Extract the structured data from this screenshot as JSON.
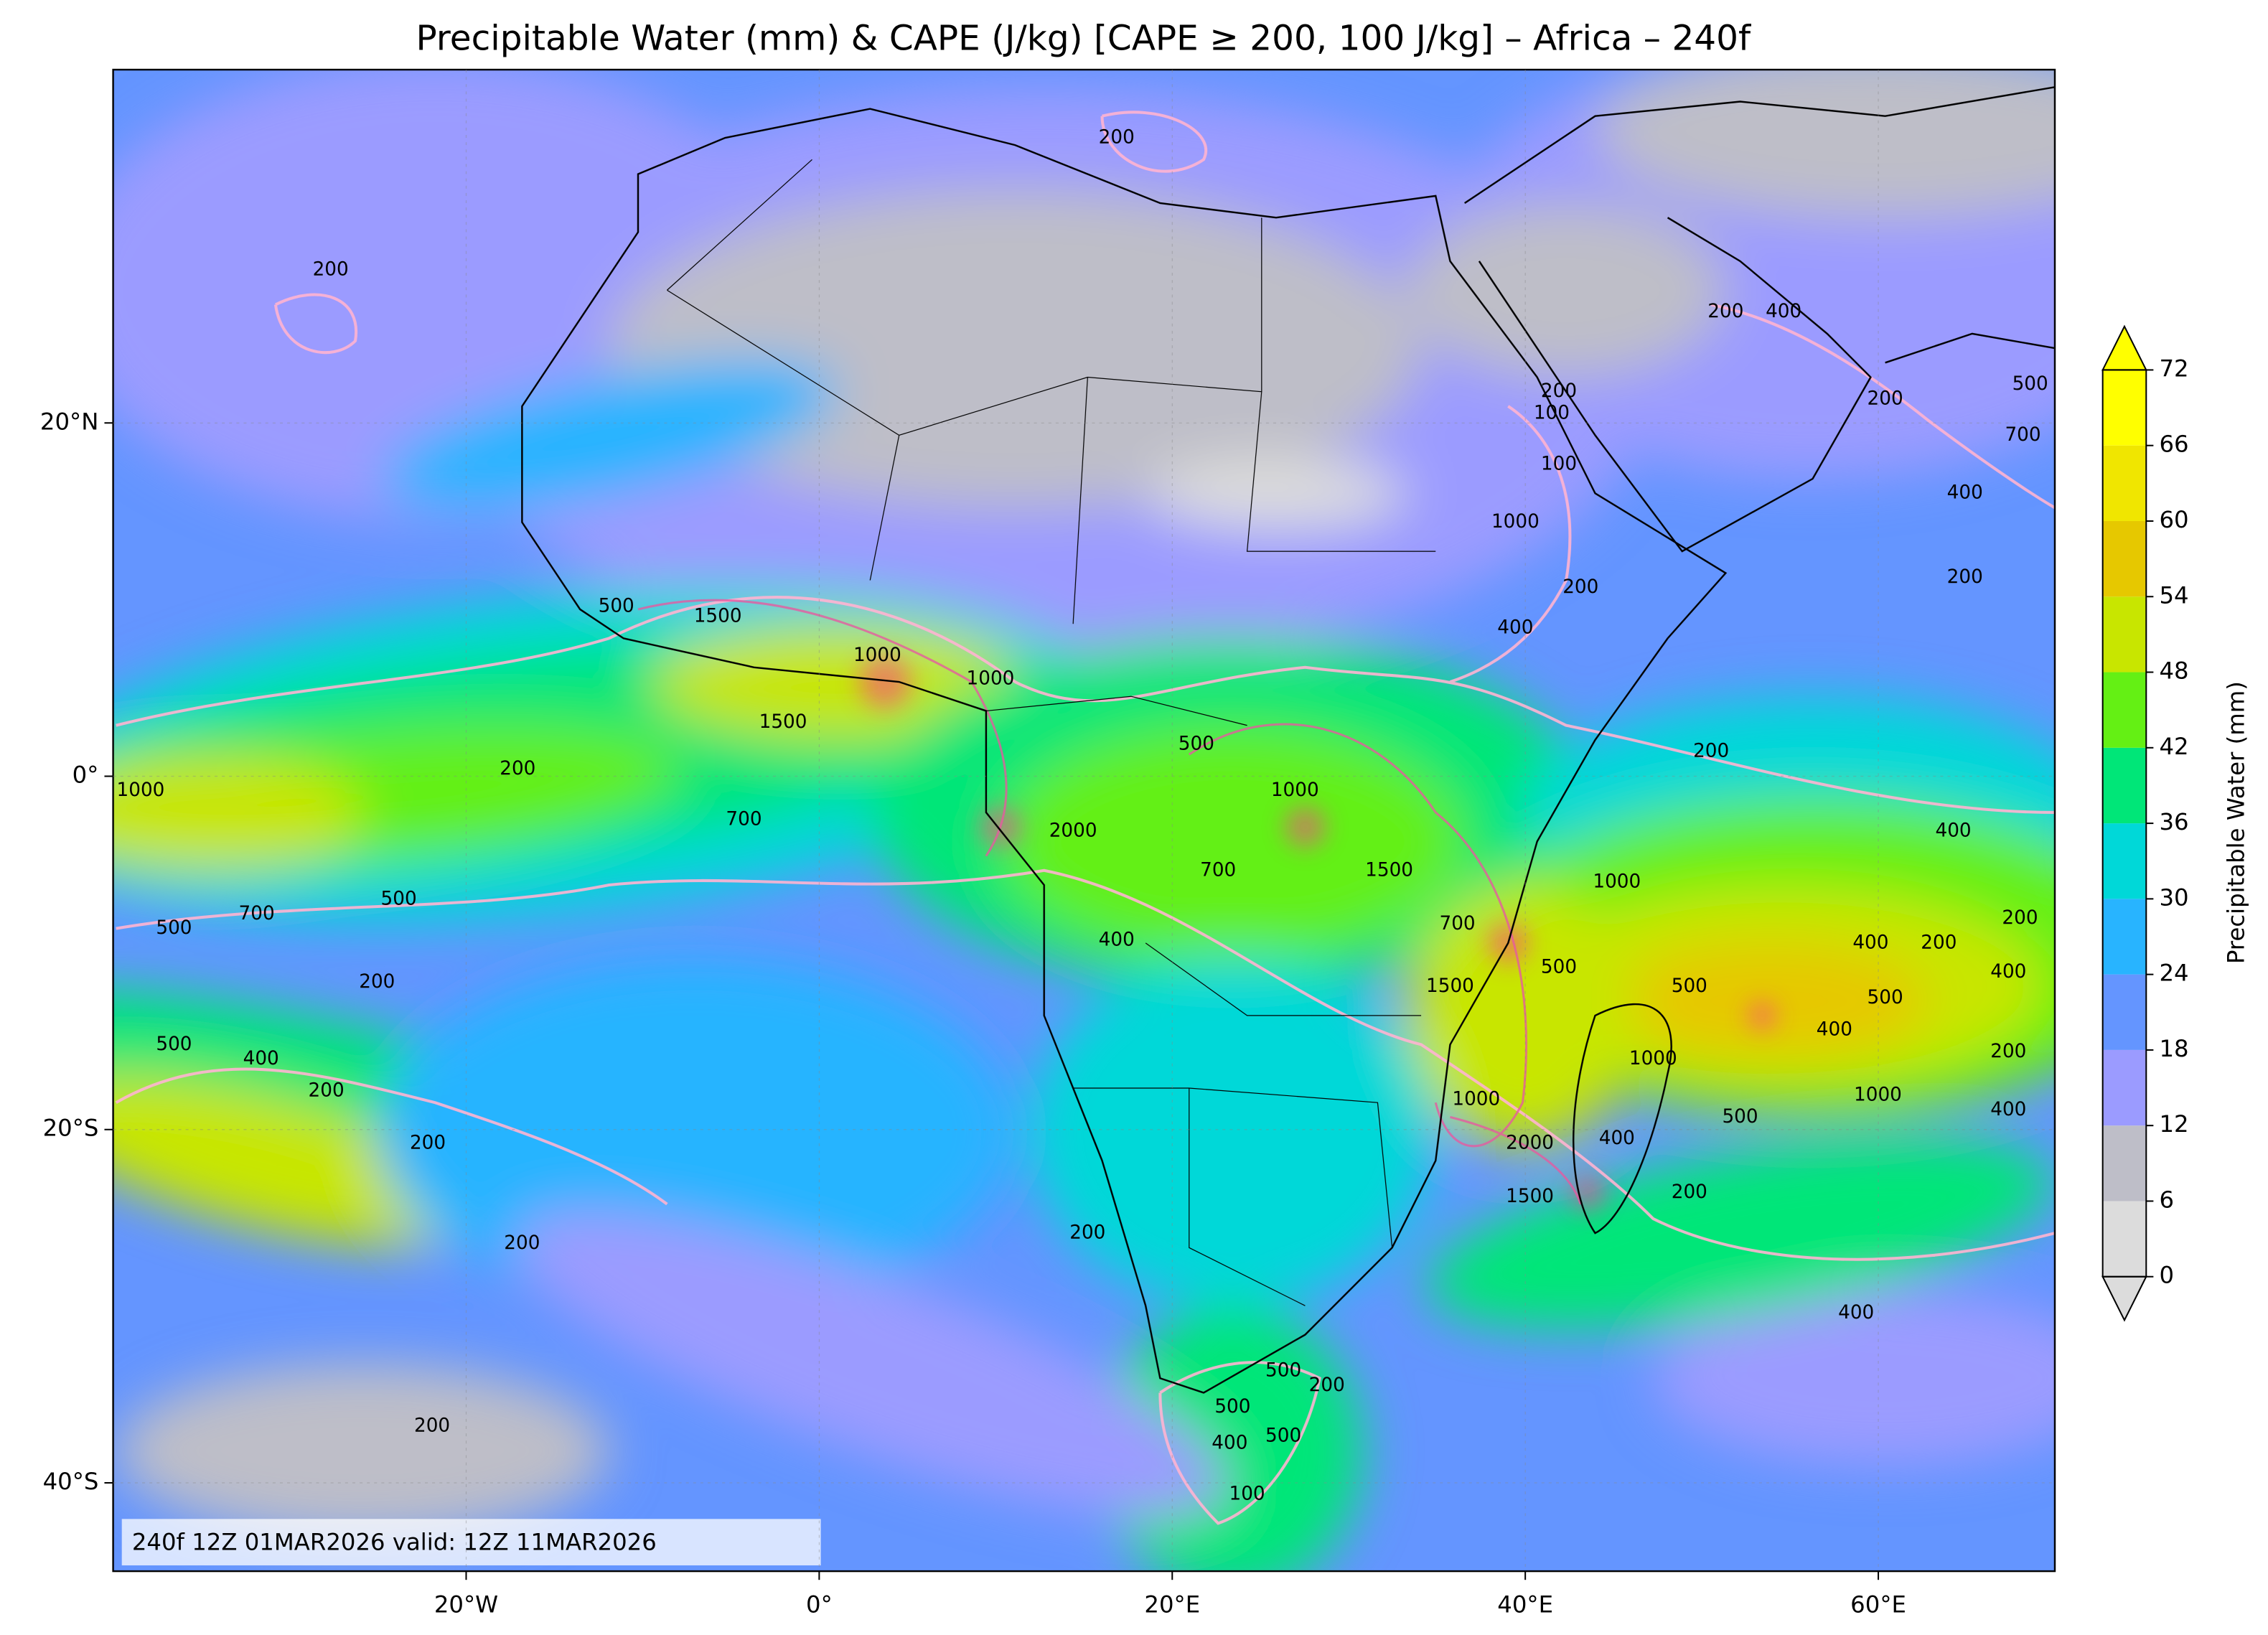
{
  "chart_data": {
    "type": "map",
    "title": "Precipitable Water (mm) & CAPE (J/kg) [CAPE ≥ 200, 100 J/kg] – Africa – 240f",
    "annotation": "240f 12Z 01MAR2026 valid: 12Z 11MAR2026",
    "xlim": [
      -40,
      70
    ],
    "ylim": [
      -45,
      40
    ],
    "xticks": [
      {
        "value": -20,
        "label": "20°W"
      },
      {
        "value": 0,
        "label": "0°"
      },
      {
        "value": 20,
        "label": "20°E"
      },
      {
        "value": 40,
        "label": "40°E"
      },
      {
        "value": 60,
        "label": "60°E"
      }
    ],
    "yticks": [
      {
        "value": 20,
        "label": "20°N"
      },
      {
        "value": 0,
        "label": "0°"
      },
      {
        "value": -20,
        "label": "20°S"
      },
      {
        "value": -40,
        "label": "40°S"
      }
    ],
    "grid": true,
    "colorbar": {
      "label": "Precipitable Water (mm)",
      "bounds": [
        0,
        6,
        12,
        18,
        24,
        30,
        36,
        42,
        48,
        54,
        60,
        66,
        72
      ],
      "colors": [
        "#dcdcdc",
        "#bebec8",
        "#9b9bff",
        "#6495ff",
        "#28b4ff",
        "#00d8d8",
        "#00e678",
        "#64f014",
        "#c8e600",
        "#e6c800",
        "#f0e600",
        "#ffff00"
      ],
      "extend": "both"
    },
    "contour_labels": [
      200,
      200,
      200,
      400,
      200,
      100,
      200,
      500,
      700,
      400,
      200,
      100,
      1000,
      200,
      400,
      500,
      1500,
      1000,
      1000,
      1500,
      200,
      1000,
      500,
      1000,
      200,
      700,
      2000,
      400,
      700,
      1500,
      1000,
      500,
      700,
      500,
      400,
      700,
      500,
      400,
      200,
      200,
      200,
      400,
      500,
      400,
      500,
      500,
      400,
      1500,
      1000,
      500,
      1000,
      200,
      400,
      1000,
      2000,
      400,
      200,
      1500,
      200,
      200,
      200,
      400,
      200,
      500,
      200,
      500,
      400,
      500,
      100,
      200
    ]
  }
}
